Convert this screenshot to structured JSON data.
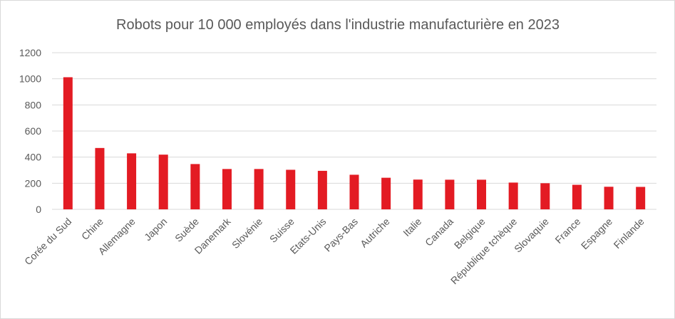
{
  "chart_data": {
    "type": "bar",
    "title": "Robots pour 10 000 employés dans l'industrie manufacturière en 2023",
    "xlabel": "",
    "ylabel": "",
    "categories": [
      "Corée du Sud",
      "Chine",
      "Allemagne",
      "Japon",
      "Suède",
      "Danemark",
      "Slovénie",
      "Suisse",
      "Etats-Unis",
      "Pays-Bas",
      "Autriche",
      "Italie",
      "Canada",
      "Belgique",
      "République tchèque",
      "Slovaquie",
      "France",
      "Espagne",
      "Finlande"
    ],
    "values": [
      1012,
      470,
      429,
      419,
      347,
      309,
      309,
      303,
      295,
      265,
      242,
      228,
      227,
      227,
      205,
      200,
      188,
      173,
      172
    ],
    "ylim": [
      0,
      1200
    ],
    "yticks": [
      "0",
      "200",
      "400",
      "600",
      "800",
      "1000",
      "1200"
    ],
    "grid": true,
    "legend": "none",
    "bar_color": "#e31b23"
  }
}
